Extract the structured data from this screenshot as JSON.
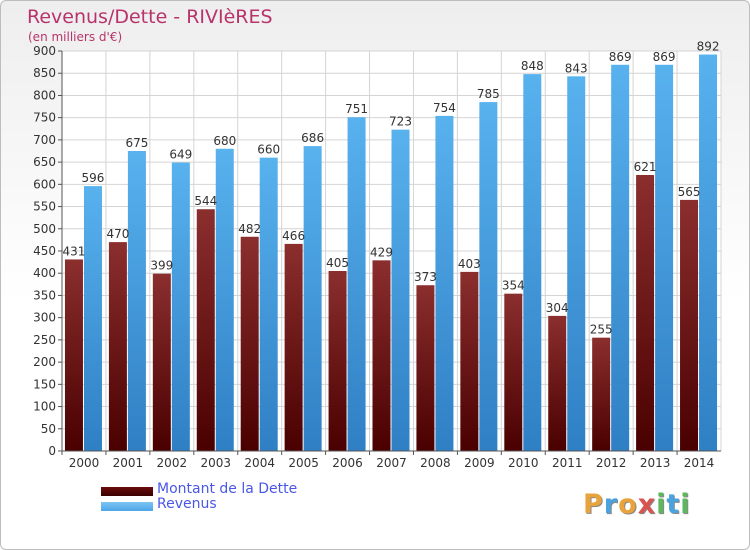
{
  "header": {
    "title": "Revenus/Dette - RIVIèRES",
    "subtitle": "(en milliers d'€)"
  },
  "chart_data": {
    "type": "bar",
    "categories": [
      "2000",
      "2001",
      "2002",
      "2003",
      "2004",
      "2005",
      "2006",
      "2007",
      "2008",
      "2009",
      "2010",
      "2011",
      "2012",
      "2013",
      "2014"
    ],
    "series": [
      {
        "name": "Montant de la Dette",
        "values": [
          431,
          470,
          399,
          544,
          482,
          466,
          405,
          429,
          373,
          403,
          354,
          304,
          255,
          621,
          565
        ],
        "color": "#6b0c0c"
      },
      {
        "name": "Revenus",
        "values": [
          596,
          675,
          649,
          680,
          660,
          686,
          751,
          723,
          754,
          785,
          848,
          843,
          869,
          869,
          892
        ],
        "color": "#4da6e8"
      }
    ],
    "yticks": [
      0,
      50,
      100,
      150,
      200,
      250,
      300,
      350,
      400,
      450,
      500,
      550,
      600,
      650,
      700,
      750,
      800,
      850,
      900
    ],
    "ylim": [
      0,
      900
    ],
    "grid": true,
    "legend_position": "bottom-left"
  },
  "legend": {
    "items": [
      {
        "label": "Montant de la Dette",
        "color": "#6b0c0c"
      },
      {
        "label": "Revenus",
        "color": "#4da6e8"
      }
    ]
  },
  "logo": {
    "text": "Proxiti",
    "letters": [
      "P",
      "r",
      "o",
      "x",
      "i",
      "t",
      "i"
    ],
    "colors": [
      "#e8a33d",
      "#4aa3df",
      "#e8a33d",
      "#d9534f",
      "#5cb85c",
      "#4aa3df",
      "#5cb85c"
    ]
  }
}
